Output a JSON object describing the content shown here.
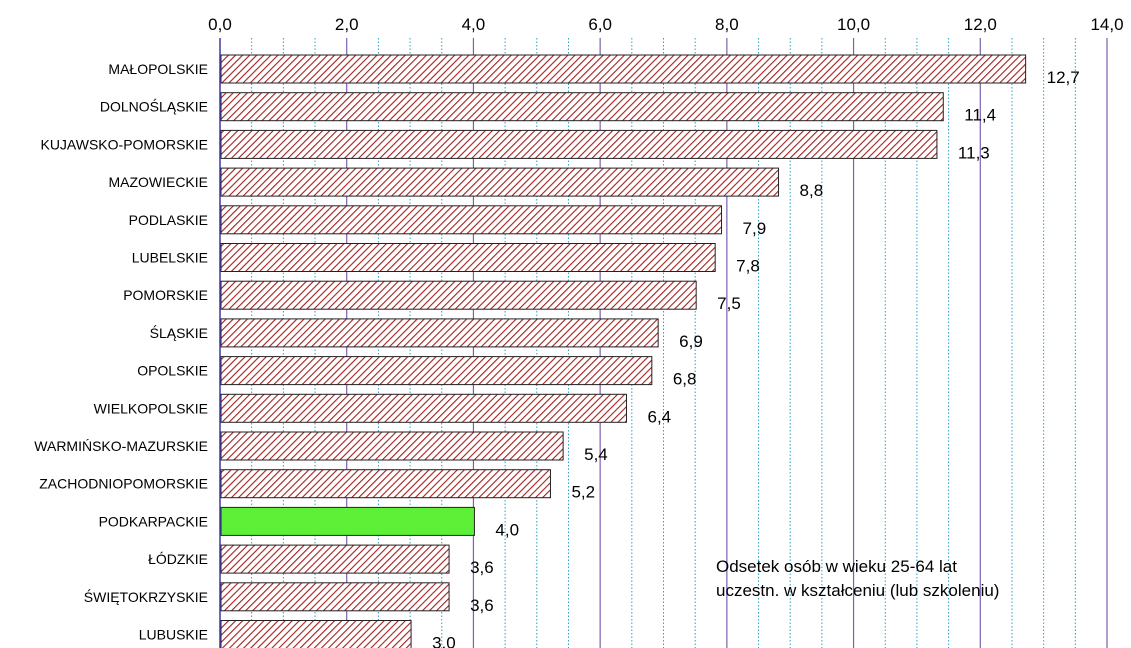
{
  "chart_data": {
    "type": "bar",
    "orientation": "horizontal",
    "categories": [
      "MAŁOPOLSKIE",
      "DOLNOŚLĄSKIE",
      "KUJAWSKO-POMORSKIE",
      "MAZOWIECKIE",
      "PODLASKIE",
      "LUBELSKIE",
      "POMORSKIE",
      "ŚLĄSKIE",
      "OPOLSKIE",
      "WIELKOPOLSKIE",
      "WARMIŃSKO-MAZURSKIE",
      "ZACHODNIOPOMORSKIE",
      "PODKARPACKIE",
      "ŁÓDZKIE",
      "ŚWIĘTOKRZYSKIE",
      "LUBUSKIE"
    ],
    "values": [
      12.7,
      11.4,
      11.3,
      8.8,
      7.9,
      7.8,
      7.5,
      6.9,
      6.8,
      6.4,
      5.4,
      5.2,
      4.0,
      3.6,
      3.6,
      3.0
    ],
    "value_labels": [
      "12,7",
      "11,4",
      "11,3",
      "8,8",
      "7,9",
      "7,8",
      "7,5",
      "6,9",
      "6,8",
      "6,4",
      "5,4",
      "5,2",
      "4,0",
      "3,6",
      "3,6",
      "3,0"
    ],
    "highlight_category": "PODKARPACKIE",
    "xlim": [
      0,
      14
    ],
    "x_ticks": [
      "0,0",
      "2,0",
      "4,0",
      "6,0",
      "8,0",
      "10,0",
      "12,0",
      "14,0"
    ],
    "x_axis_position": "top",
    "grid": true,
    "annotation": [
      "Odsetek osób w wieku 25-64 lat",
      "uczestn. w kształceniu (lub szkoleniu)"
    ],
    "colors": {
      "bar_hatch": "#a02020",
      "bar_highlight": "#5ef036",
      "grid_major": "#7b5fb0",
      "grid_minor": "#2aa0c8",
      "axis": "#3c3ca0"
    }
  }
}
